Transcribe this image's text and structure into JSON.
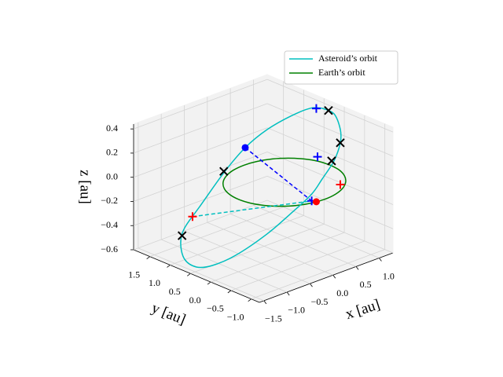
{
  "chart_data": {
    "type": "line3d",
    "xlabel": "x [au]",
    "ylabel": "y [au]",
    "zlabel": "z [au]",
    "xlim": [
      -1.6,
      1.3
    ],
    "ylim": [
      -1.2,
      1.9
    ],
    "zlim": [
      -0.6,
      0.44
    ],
    "xticks": [
      {
        "value": -1.5,
        "label": "−1.5"
      },
      {
        "value": -1.0,
        "label": "−1.0"
      },
      {
        "value": -0.5,
        "label": "−0.5"
      },
      {
        "value": 0.0,
        "label": "0.0"
      },
      0.5,
      {
        "value": 1.0,
        "label": "1.0"
      }
    ],
    "yticks": [
      {
        "value": -1.0,
        "label": "−1.0"
      },
      {
        "value": -0.5,
        "label": "−0.5"
      },
      {
        "value": 0.0,
        "label": "0.0"
      },
      0.5,
      {
        "value": 1.0,
        "label": "1.0"
      },
      1.5
    ],
    "zticks": [
      {
        "value": -0.6,
        "label": "−0.6"
      },
      {
        "value": -0.4,
        "label": "−0.4"
      },
      {
        "value": -0.2,
        "label": "−0.2"
      },
      {
        "value": 0.0,
        "label": "0.0"
      },
      0.2,
      0.4
    ],
    "grid": true,
    "legend": "upper right",
    "series": [
      {
        "name": "Asteroid’s orbit",
        "color": "#00bfbf",
        "x": [
          1.381,
          1.5,
          1.472,
          1.376,
          1.163,
          0.875,
          0.615,
          0.205,
          -0.258,
          -0.832,
          -1.222,
          -1.444,
          -1.547,
          -1.487,
          -1.322,
          -0.953,
          -0.4,
          0.065,
          0.49,
          0.902,
          1.222,
          1.381
        ],
        "y": [
          0.636,
          0.48,
          0.294,
          0.185,
          0.098,
          0.062,
          0.037,
          0.076,
          0.132,
          0.255,
          0.393,
          0.528,
          0.703,
          0.867,
          0.958,
          0.989,
          1.036,
          1.04,
          0.98,
          0.867,
          0.747,
          0.636
        ],
        "z": [
          0.328,
          0.287,
          0.188,
          0.106,
          -0.001,
          -0.105,
          -0.195,
          -0.299,
          -0.41,
          -0.523,
          -0.572,
          -0.572,
          -0.518,
          -0.419,
          -0.326,
          -0.199,
          -0.01,
          0.131,
          0.229,
          0.298,
          0.335,
          0.328
        ]
      },
      {
        "name": "Earth’s orbit",
        "color": "#008000",
        "x": [
          1,
          0.966,
          0.866,
          0.707,
          0.5,
          0.259,
          0,
          -0.259,
          -0.5,
          -0.707,
          -0.866,
          -0.966,
          -1,
          -0.966,
          -0.866,
          -0.707,
          -0.5,
          -0.259,
          0,
          0.259,
          0.5,
          0.707,
          0.866,
          0.966,
          1
        ],
        "y": [
          0,
          0.259,
          0.5,
          0.707,
          0.866,
          0.966,
          1,
          0.966,
          0.866,
          0.707,
          0.5,
          0.259,
          0,
          -0.259,
          -0.5,
          -0.707,
          -0.866,
          -0.966,
          -1,
          -0.966,
          -0.866,
          -0.707,
          -0.5,
          -0.259,
          0
        ],
        "z": [
          0,
          0,
          0,
          0,
          0,
          0,
          0,
          0,
          0,
          0,
          0,
          0,
          0,
          0,
          0,
          0,
          0,
          0,
          0,
          0,
          0,
          0,
          0,
          0,
          0
        ]
      }
    ],
    "lines": [
      {
        "color": "#0000ff",
        "dashed": true,
        "x": [
          0.065,
          -0.2
        ],
        "y": [
          1.04,
          -0.9
        ],
        "z": [
          0.131,
          0
        ]
      },
      {
        "color": "#00bfbf",
        "dashed": true,
        "x": [
          -1.14,
          -0.2
        ],
        "y": [
          0.97,
          -0.9
        ],
        "z": [
          -0.26,
          0
        ]
      }
    ],
    "markers": [
      {
        "marker": "x",
        "color": "#000000",
        "x": [
          1.45,
          1.376,
          1.13,
          -0.4,
          -1.42
        ],
        "y": [
          0.56,
          0.185,
          0.12,
          1.04,
          0.91
        ],
        "z": [
          0.31,
          0.106,
          0,
          0,
          -0.37
        ]
      },
      {
        "marker": "+",
        "color": "#0000ff",
        "x": [
          1.3,
          1.08,
          -0.2
        ],
        "y": [
          0.69,
          0.41,
          -0.9
        ],
        "z": [
          0.33,
          0,
          0
        ]
      },
      {
        "marker": "+",
        "color": "#ff0000",
        "x": [
          0.58,
          -1.14
        ],
        "y": [
          -0.72,
          0.97
        ],
        "z": [
          0,
          -0.26
        ]
      },
      {
        "marker": "o",
        "color": "#0000ff",
        "x": [
          0.065
        ],
        "y": [
          1.04
        ],
        "z": [
          0.131
        ]
      },
      {
        "marker": "o",
        "color": "#ff0000",
        "x": [
          -0.17
        ],
        "y": [
          -0.98
        ],
        "z": [
          0
        ]
      }
    ]
  }
}
